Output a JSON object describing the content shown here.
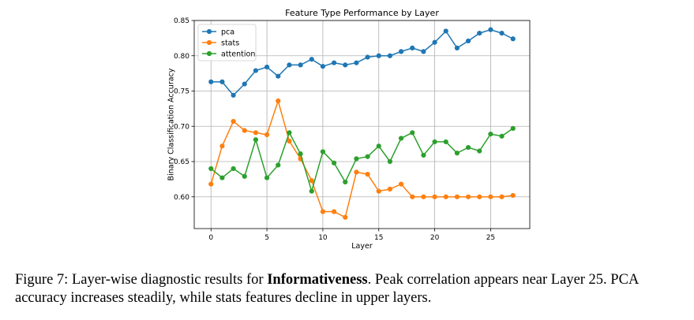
{
  "chart_data": {
    "type": "line",
    "title": "Feature Type Performance by Layer",
    "xlabel": "Layer",
    "ylabel": "Binary Classification Accuracy",
    "xlim": [
      -1.5,
      28.5
    ],
    "ylim": [
      0.555,
      0.85
    ],
    "xticks": [
      0,
      5,
      10,
      15,
      20,
      25
    ],
    "yticks": [
      0.6,
      0.65,
      0.7,
      0.75,
      0.8,
      0.85
    ],
    "ytick_labels": [
      "0.60",
      "0.65",
      "0.70",
      "0.75",
      "0.80",
      "0.85"
    ],
    "grid": true,
    "legend_position": "top-left",
    "x": [
      0,
      1,
      2,
      3,
      4,
      5,
      6,
      7,
      8,
      9,
      10,
      11,
      12,
      13,
      14,
      15,
      16,
      17,
      18,
      19,
      20,
      21,
      22,
      23,
      24,
      25,
      26,
      27
    ],
    "series": [
      {
        "name": "pca",
        "color": "#1f77b4",
        "values": [
          0.763,
          0.763,
          0.744,
          0.76,
          0.779,
          0.784,
          0.771,
          0.787,
          0.787,
          0.795,
          0.785,
          0.79,
          0.787,
          0.79,
          0.798,
          0.8,
          0.8,
          0.806,
          0.811,
          0.806,
          0.819,
          0.835,
          0.811,
          0.821,
          0.832,
          0.837,
          0.832,
          0.824
        ]
      },
      {
        "name": "stats",
        "color": "#ff7f0e",
        "values": [
          0.618,
          0.672,
          0.707,
          0.694,
          0.691,
          0.688,
          0.736,
          0.679,
          0.654,
          0.623,
          0.579,
          0.579,
          0.571,
          0.635,
          0.632,
          0.608,
          0.611,
          0.618,
          0.6,
          0.6,
          0.6,
          0.6,
          0.6,
          0.6,
          0.6,
          0.6,
          0.6,
          0.602
        ]
      },
      {
        "name": "attention",
        "color": "#2ca02c",
        "values": [
          0.64,
          0.627,
          0.64,
          0.629,
          0.681,
          0.627,
          0.645,
          0.691,
          0.661,
          0.608,
          0.664,
          0.648,
          0.621,
          0.654,
          0.657,
          0.672,
          0.65,
          0.683,
          0.691,
          0.659,
          0.678,
          0.678,
          0.662,
          0.67,
          0.665,
          0.689,
          0.686,
          0.697
        ]
      }
    ]
  },
  "caption": {
    "prefix": "Figure 7: Layer-wise diagnostic results for ",
    "bold": "Informativeness",
    "suffix": ". Peak correlation appears near Layer 25. PCA accuracy increases steadily, while stats features decline in upper layers."
  }
}
